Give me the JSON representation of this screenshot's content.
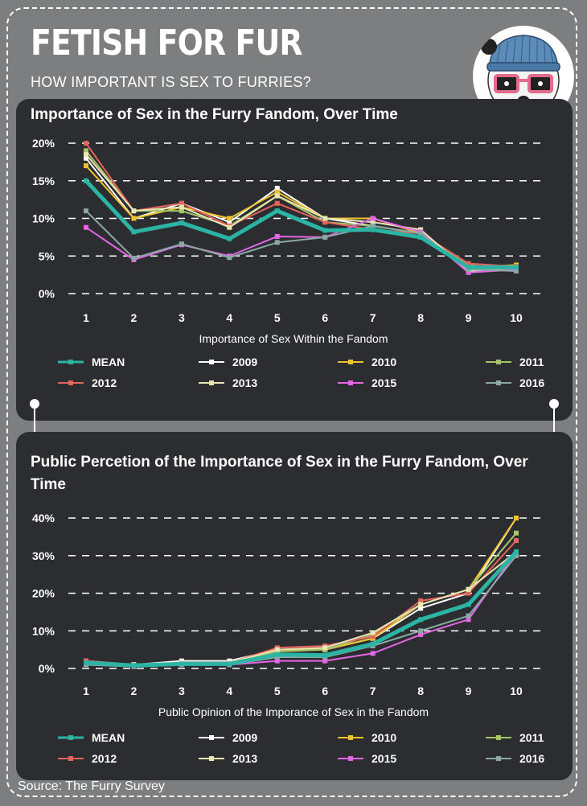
{
  "header": {
    "title": "FETISH FOR FUR",
    "subtitle": "HOW IMPORTANT IS SEX TO FURRIES?"
  },
  "footer": {
    "source": "Source: The Furry Survey"
  },
  "chart_data": [
    {
      "type": "line",
      "title": "Importance of Sex in the Furry Fandom, Over Time",
      "xlabel": "Importance of Sex Within the Fandom",
      "ylabel": "",
      "x": [
        1,
        2,
        3,
        4,
        5,
        6,
        7,
        8,
        9,
        10
      ],
      "ylim": [
        0,
        20
      ],
      "yticks": [
        0,
        5,
        10,
        15,
        20
      ],
      "ytick_labels": [
        "0%",
        "5%",
        "10%",
        "15%",
        "20%"
      ],
      "grid": "dashed-horizontal",
      "legend_position": "bottom",
      "series": [
        {
          "name": "2009",
          "color": "#ffffff",
          "values": [
            18,
            10,
            12,
            9.5,
            14,
            10,
            9,
            8,
            3.5,
            3.5
          ]
        },
        {
          "name": "2010",
          "color": "#f0c22e",
          "values": [
            17,
            10,
            11.5,
            10,
            13.5,
            10,
            10,
            8,
            3.5,
            3.8
          ]
        },
        {
          "name": "2011",
          "color": "#a6c46a",
          "values": [
            19,
            11,
            11,
            9,
            13,
            9.5,
            9,
            8,
            3.8,
            3.2
          ]
        },
        {
          "name": "2012",
          "color": "#e5645c",
          "values": [
            20,
            11,
            12,
            9,
            12,
            9.5,
            8.5,
            8,
            4,
            3.6
          ]
        },
        {
          "name": "2013",
          "color": "#e9e5b4",
          "values": [
            18.5,
            11,
            11.5,
            8.8,
            13,
            10,
            9.5,
            8.5,
            3,
            3.4
          ]
        },
        {
          "name": "2015",
          "color": "#e466e5",
          "values": [
            8.8,
            4.5,
            6.5,
            5,
            7.6,
            7.5,
            10,
            8.2,
            2.8,
            3.2
          ]
        },
        {
          "name": "2016",
          "color": "#8aa9a4",
          "values": [
            11,
            4.7,
            6.6,
            4.8,
            6.8,
            7.5,
            9,
            8,
            3.2,
            3
          ]
        },
        {
          "name": "MEAN",
          "color": "#2bb3a4",
          "width": 5,
          "values": [
            15,
            8.2,
            9.4,
            7.3,
            11,
            8.4,
            8.5,
            7.5,
            3.5,
            3.5
          ]
        }
      ]
    },
    {
      "type": "line",
      "title": "Public Percetion of the Importance of Sex in the Furry Fandom, Over Time",
      "xlabel": "Public Opinion of the Imporance of Sex in the Fandom",
      "ylabel": "",
      "x": [
        1,
        2,
        3,
        4,
        5,
        6,
        7,
        8,
        9,
        10
      ],
      "ylim": [
        0,
        40
      ],
      "yticks": [
        0,
        10,
        20,
        30,
        40
      ],
      "ytick_labels": [
        "0%",
        "10%",
        "20%",
        "30%",
        "40%"
      ],
      "grid": "dashed-horizontal",
      "legend_position": "bottom",
      "series": [
        {
          "name": "2009",
          "color": "#ffffff",
          "values": [
            2,
            1,
            2,
            2,
            5,
            5,
            8,
            16,
            20,
            40
          ]
        },
        {
          "name": "2010",
          "color": "#f0c22e",
          "values": [
            1.5,
            1,
            1.5,
            1.5,
            5,
            5,
            8,
            17,
            21,
            40
          ]
        },
        {
          "name": "2011",
          "color": "#a6c46a",
          "values": [
            1.5,
            1,
            1.5,
            1.5,
            4.5,
            5,
            9,
            17,
            21,
            36
          ]
        },
        {
          "name": "2012",
          "color": "#e5645c",
          "values": [
            2,
            1,
            1.5,
            1.5,
            5.5,
            6,
            8.5,
            18,
            20,
            34
          ]
        },
        {
          "name": "2013",
          "color": "#e9e5b4",
          "values": [
            1.5,
            1,
            1.5,
            1.5,
            5,
            5.5,
            9.5,
            17,
            21,
            31
          ]
        },
        {
          "name": "2015",
          "color": "#e466e5",
          "values": [
            1,
            0.5,
            1,
            1,
            2,
            2,
            4,
            9,
            13,
            31
          ]
        },
        {
          "name": "2016",
          "color": "#8aa9a4",
          "values": [
            1,
            0.5,
            1,
            1,
            3,
            3,
            6,
            10,
            14,
            30
          ]
        },
        {
          "name": "MEAN",
          "color": "#2bb3a4",
          "width": 5,
          "values": [
            1.5,
            0.8,
            1.2,
            1.2,
            3.7,
            3.5,
            6.5,
            13,
            17,
            31
          ]
        }
      ]
    }
  ],
  "legend_order": [
    "MEAN",
    "2009",
    "2010",
    "2011",
    "2012",
    "2013",
    "2015",
    "2016"
  ]
}
